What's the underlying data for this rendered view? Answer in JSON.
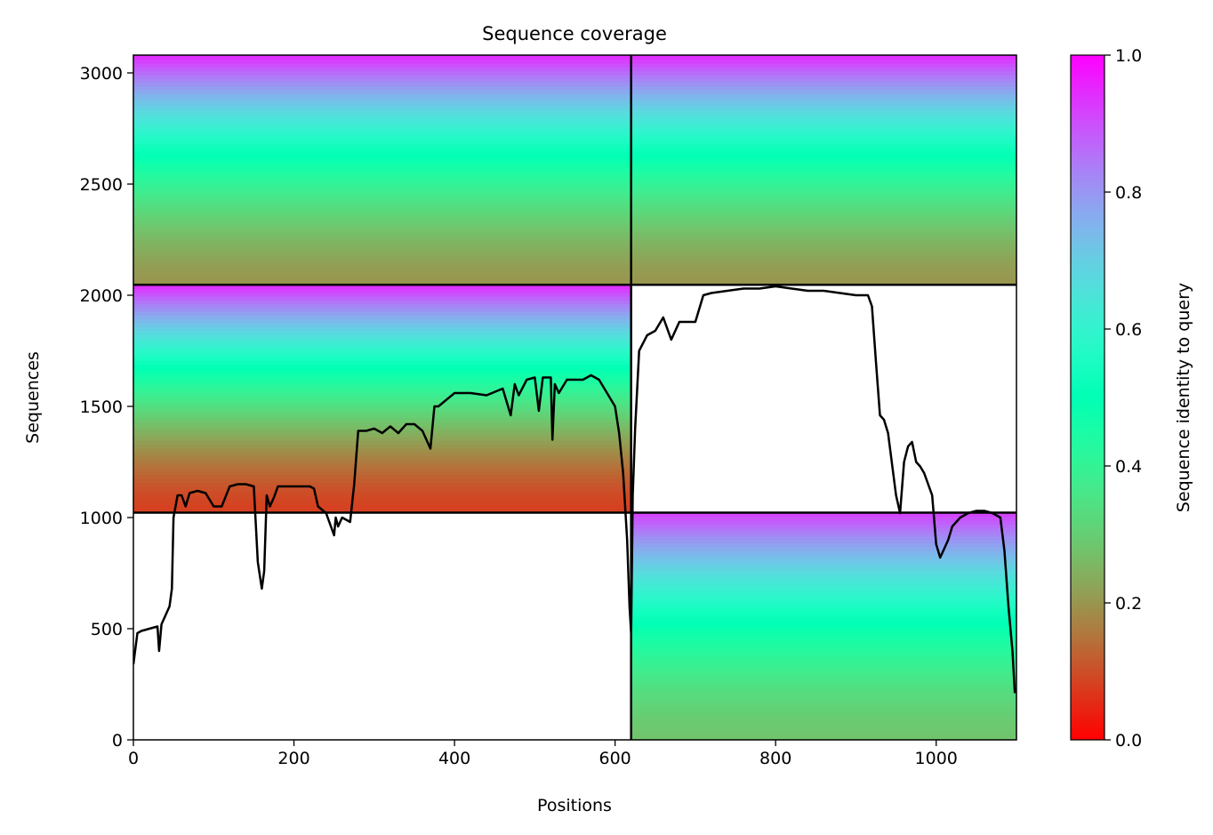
{
  "chart_data": {
    "type": "heatmap",
    "title": "Sequence coverage",
    "xlabel": "Positions",
    "ylabel": "Sequences",
    "xlim": [
      0,
      1100
    ],
    "ylim": [
      0,
      3080
    ],
    "xticks": [
      0,
      200,
      400,
      600,
      800,
      1000
    ],
    "yticks": [
      0,
      500,
      1000,
      1500,
      2000,
      2500,
      3000
    ],
    "grid": false,
    "colormap": "rainbow_r",
    "colorbar": {
      "label": "Sequence identity to query",
      "range": [
        0,
        1
      ],
      "ticks": [
        0.0,
        0.2,
        0.4,
        0.6,
        0.8,
        1.0
      ],
      "tick_labels": [
        "0.0",
        "0.2",
        "0.4",
        "0.6",
        "0.8",
        "1.0"
      ],
      "colors": [
        "#ff0000",
        "#ff8040",
        "#c0ff80",
        "#40ffc0",
        "#00b4f0",
        "#8000ff"
      ]
    },
    "block_boundaries": {
      "x": 620,
      "y": [
        1022,
        2047
      ]
    },
    "blocks": [
      {
        "name": "block-1",
        "x_range": [
          0,
          620
        ],
        "y_range": [
          2047,
          3080
        ],
        "identity_top": 0.95,
        "identity_bottom": 0.2
      },
      {
        "name": "block-2",
        "x_range": [
          0,
          620
        ],
        "y_range": [
          1022,
          2047
        ],
        "identity_top": 0.95,
        "identity_bottom": 0.08
      },
      {
        "name": "block-3",
        "x_range": [
          620,
          1100
        ],
        "y_range": [
          2047,
          3080
        ],
        "identity_top": 0.95,
        "identity_bottom": 0.2
      },
      {
        "name": "block-4",
        "x_range": [
          620,
          1100
        ],
        "y_range": [
          0,
          1022
        ],
        "identity_top": 0.92,
        "identity_bottom": 0.28
      }
    ],
    "coverage_line": {
      "color": "#000000",
      "x": [
        0,
        5,
        10,
        30,
        32,
        35,
        40,
        45,
        48,
        50,
        55,
        60,
        65,
        70,
        80,
        90,
        100,
        110,
        120,
        130,
        140,
        150,
        155,
        160,
        163,
        166,
        170,
        175,
        180,
        200,
        220,
        225,
        230,
        240,
        250,
        252,
        255,
        260,
        270,
        275,
        280,
        290,
        300,
        310,
        320,
        330,
        340,
        350,
        360,
        370,
        375,
        380,
        400,
        420,
        440,
        460,
        470,
        475,
        480,
        490,
        500,
        505,
        510,
        520,
        522,
        525,
        530,
        540,
        560,
        570,
        580,
        590,
        600,
        605,
        610,
        615,
        618,
        620,
        622,
        625,
        630,
        640,
        650,
        660,
        670,
        680,
        690,
        700,
        710,
        720,
        740,
        760,
        780,
        800,
        820,
        840,
        860,
        880,
        900,
        915,
        920,
        925,
        930,
        935,
        940,
        950,
        955,
        960,
        965,
        970,
        975,
        980,
        985,
        990,
        995,
        1000,
        1005,
        1010,
        1015,
        1020,
        1030,
        1040,
        1050,
        1060,
        1070,
        1080,
        1085,
        1090,
        1095,
        1098
      ],
      "y": [
        340,
        480,
        490,
        510,
        400,
        520,
        560,
        600,
        680,
        1000,
        1100,
        1100,
        1050,
        1110,
        1120,
        1110,
        1050,
        1050,
        1140,
        1150,
        1150,
        1140,
        800,
        680,
        760,
        1100,
        1050,
        1090,
        1140,
        1140,
        1140,
        1130,
        1050,
        1020,
        920,
        1000,
        960,
        1000,
        980,
        1150,
        1390,
        1390,
        1400,
        1380,
        1410,
        1380,
        1420,
        1420,
        1390,
        1310,
        1500,
        1500,
        1560,
        1560,
        1550,
        1580,
        1460,
        1600,
        1550,
        1620,
        1630,
        1480,
        1630,
        1630,
        1350,
        1600,
        1560,
        1620,
        1620,
        1640,
        1620,
        1560,
        1500,
        1380,
        1200,
        900,
        600,
        480,
        1100,
        1400,
        1750,
        1820,
        1840,
        1900,
        1800,
        1880,
        1880,
        1880,
        2000,
        2010,
        2020,
        2030,
        2030,
        2040,
        2030,
        2020,
        2020,
        2010,
        2000,
        2000,
        1950,
        1700,
        1460,
        1440,
        1380,
        1100,
        1020,
        1250,
        1320,
        1340,
        1250,
        1230,
        1200,
        1150,
        1100,
        880,
        820,
        860,
        900,
        960,
        1000,
        1020,
        1030,
        1030,
        1020,
        1000,
        850,
        600,
        400,
        210
      ]
    }
  }
}
